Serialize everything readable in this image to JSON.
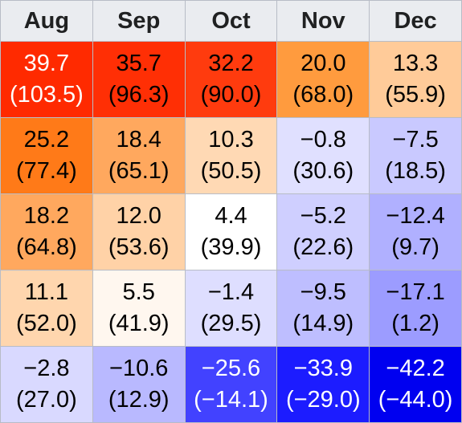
{
  "columns": [
    "Aug",
    "Sep",
    "Oct",
    "Nov",
    "Dec"
  ],
  "rows": [
    [
      {
        "c": "39.7",
        "f": "(103.5)",
        "bg": "#ff2a00",
        "fg": "#ffffff"
      },
      {
        "c": "35.7",
        "f": "(96.3)",
        "bg": "#ff2f05",
        "fg": "#000000"
      },
      {
        "c": "32.2",
        "f": "(90.0)",
        "bg": "#ff3b0e",
        "fg": "#000000"
      },
      {
        "c": "20.0",
        "f": "(68.0)",
        "bg": "#ff9b3e",
        "fg": "#000000"
      },
      {
        "c": "13.3",
        "f": "(55.9)",
        "bg": "#ffcb99",
        "fg": "#000000"
      }
    ],
    [
      {
        "c": "25.2",
        "f": "(77.4)",
        "bg": "#ff7a18",
        "fg": "#000000"
      },
      {
        "c": "18.4",
        "f": "(65.1)",
        "bg": "#ffa85e",
        "fg": "#000000"
      },
      {
        "c": "10.3",
        "f": "(50.5)",
        "bg": "#ffd9b4",
        "fg": "#000000"
      },
      {
        "c": "−0.8",
        "f": "(30.6)",
        "bg": "#e0e0ff",
        "fg": "#000000"
      },
      {
        "c": "−7.5",
        "f": "(18.5)",
        "bg": "#c9c9ff",
        "fg": "#000000"
      }
    ],
    [
      {
        "c": "18.2",
        "f": "(64.8)",
        "bg": "#ffa85e",
        "fg": "#000000"
      },
      {
        "c": "12.0",
        "f": "(53.6)",
        "bg": "#ffd2a7",
        "fg": "#000000"
      },
      {
        "c": "4.4",
        "f": "(39.9)",
        "bg": "#ffffff",
        "fg": "#000000"
      },
      {
        "c": "−5.2",
        "f": "(22.6)",
        "bg": "#cfcfff",
        "fg": "#000000"
      },
      {
        "c": "−12.4",
        "f": "(9.7)",
        "bg": "#b0b0ff",
        "fg": "#000000"
      }
    ],
    [
      {
        "c": "11.1",
        "f": "(52.0)",
        "bg": "#ffd6ae",
        "fg": "#000000"
      },
      {
        "c": "5.5",
        "f": "(41.9)",
        "bg": "#fff7ef",
        "fg": "#000000"
      },
      {
        "c": "−1.4",
        "f": "(29.5)",
        "bg": "#dedeff",
        "fg": "#000000"
      },
      {
        "c": "−9.5",
        "f": "(14.9)",
        "bg": "#bebeff",
        "fg": "#000000"
      },
      {
        "c": "−17.1",
        "f": "(1.2)",
        "bg": "#9c9cff",
        "fg": "#000000"
      }
    ],
    [
      {
        "c": "−2.8",
        "f": "(27.0)",
        "bg": "#d9d9ff",
        "fg": "#000000"
      },
      {
        "c": "−10.6",
        "f": "(12.9)",
        "bg": "#b9b9ff",
        "fg": "#000000"
      },
      {
        "c": "−25.6",
        "f": "(−14.1)",
        "bg": "#4242ff",
        "fg": "#ffffff"
      },
      {
        "c": "−33.9",
        "f": "(−29.0)",
        "bg": "#1c1cff",
        "fg": "#ffffff"
      },
      {
        "c": "−42.2",
        "f": "(−44.0)",
        "bg": "#0000f0",
        "fg": "#ffffff"
      }
    ]
  ]
}
